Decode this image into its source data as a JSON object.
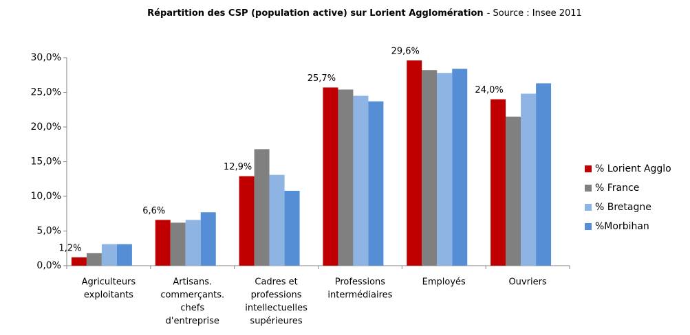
{
  "chart_data": {
    "type": "bar",
    "title": "Répartition des CSP (population active) sur Lorient Agglomération",
    "source": "- Source : Insee 2011",
    "categories": [
      [
        "Agriculteurs",
        "exploitants"
      ],
      [
        "Artisans.",
        "commerçants.",
        "chefs",
        "d'entreprise"
      ],
      [
        "Cadres et",
        "professions",
        "intellectuelles",
        "supérieures"
      ],
      [
        "Professions",
        "intermédiaires"
      ],
      [
        "Employés"
      ],
      [
        "Ouvriers"
      ]
    ],
    "series": [
      {
        "name": "% Lorient Agglo",
        "color": "#c00000",
        "values": [
          1.2,
          6.6,
          12.9,
          25.7,
          29.6,
          24.0
        ],
        "value_labels": [
          "1,2%",
          "6,6%",
          "12,9%",
          "25,7%",
          "29,6%",
          "24,0%"
        ]
      },
      {
        "name": "% France",
        "color": "#808080",
        "values": [
          1.8,
          6.2,
          16.8,
          25.4,
          28.2,
          21.5
        ]
      },
      {
        "name": "% Bretagne",
        "color": "#8db4e2",
        "values": [
          3.1,
          6.6,
          13.1,
          24.5,
          27.8,
          24.8
        ]
      },
      {
        "name": "%Morbihan",
        "color": "#558ed5",
        "values": [
          3.1,
          7.7,
          10.8,
          23.7,
          28.4,
          26.3
        ]
      }
    ],
    "ylim": [
      0,
      30
    ],
    "yticks": [
      {
        "value": 0,
        "label": "0,0%"
      },
      {
        "value": 5,
        "label": "5,0%"
      },
      {
        "value": 10,
        "label": "10,0%"
      },
      {
        "value": 15,
        "label": "15,0%"
      },
      {
        "value": 20,
        "label": "20,0%"
      },
      {
        "value": 25,
        "label": "25,0%"
      },
      {
        "value": 30,
        "label": "30,0%"
      }
    ],
    "grid": false,
    "legend": "right"
  }
}
